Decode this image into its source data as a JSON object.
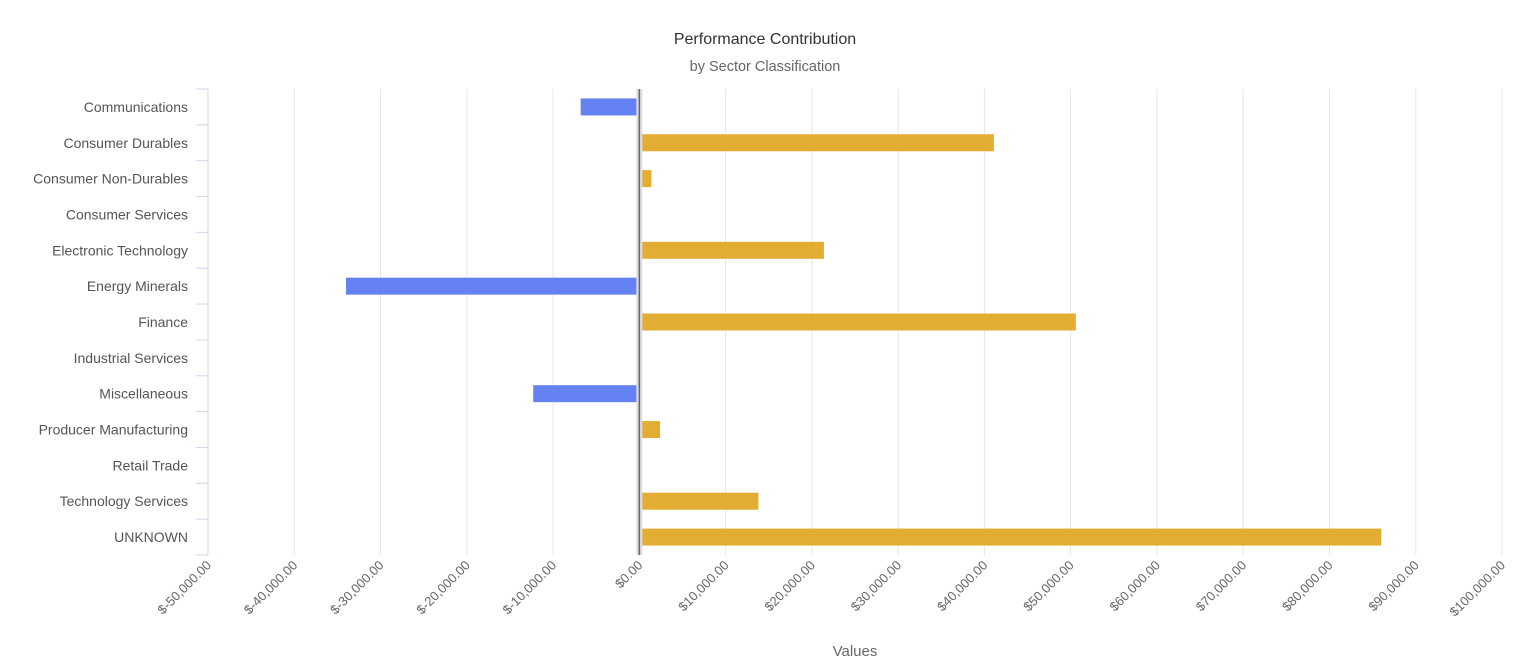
{
  "chart_data": {
    "type": "bar",
    "orientation": "horizontal",
    "title": "Performance Contribution",
    "subtitle": "by Sector Classification",
    "xlabel": "Values",
    "ylabel": "",
    "xlim": [
      -50000,
      100000
    ],
    "tick_step": 10000,
    "tick_labels": [
      "$-50,000.00",
      "$-40,000.00",
      "$-30,000.00",
      "$-20,000.00",
      "$-10,000.00",
      "$0.00",
      "$10,000.00",
      "$20,000.00",
      "$30,000.00",
      "$40,000.00",
      "$50,000.00",
      "$60,000.00",
      "$70,000.00",
      "$80,000.00",
      "$90,000.00",
      "$100,000.00"
    ],
    "grid": true,
    "categories": [
      "Communications",
      "Consumer Durables",
      "Consumer Non-Durables",
      "Consumer Services",
      "Electronic Technology",
      "Energy Minerals",
      "Finance",
      "Industrial Services",
      "Miscellaneous",
      "Producer Manufacturing",
      "Retail Trade",
      "Technology Services",
      "UNKNOWN"
    ],
    "values": [
      -6800,
      41100,
      1400,
      -300,
      21400,
      -34000,
      50600,
      0,
      -12300,
      2400,
      300,
      13800,
      86000
    ],
    "colors": {
      "positive": "#e3ad33",
      "negative": "#6482f2",
      "grid": "#e6e6e6",
      "zero_line": "#666666"
    }
  }
}
